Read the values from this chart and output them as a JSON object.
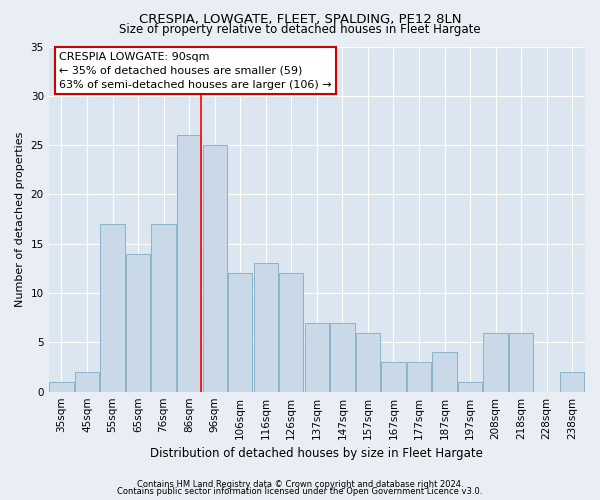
{
  "title": "CRESPIA, LOWGATE, FLEET, SPALDING, PE12 8LN",
  "subtitle": "Size of property relative to detached houses in Fleet Hargate",
  "xlabel": "Distribution of detached houses by size in Fleet Hargate",
  "ylabel": "Number of detached properties",
  "categories": [
    "35sqm",
    "45sqm",
    "55sqm",
    "65sqm",
    "76sqm",
    "86sqm",
    "96sqm",
    "106sqm",
    "116sqm",
    "126sqm",
    "137sqm",
    "147sqm",
    "157sqm",
    "167sqm",
    "177sqm",
    "187sqm",
    "197sqm",
    "208sqm",
    "218sqm",
    "228sqm",
    "238sqm"
  ],
  "values": [
    1,
    2,
    17,
    14,
    17,
    26,
    25,
    12,
    13,
    12,
    7,
    7,
    6,
    3,
    3,
    4,
    1,
    6,
    6,
    0,
    2
  ],
  "bar_color": "#c9d9e8",
  "bar_edge_color": "#8ab4cc",
  "annotation_text": "CRESPIA LOWGATE: 90sqm\n← 35% of detached houses are smaller (59)\n63% of semi-detached houses are larger (106) →",
  "annotation_box_color": "#ffffff",
  "annotation_box_edge_color": "#cc0000",
  "background_color": "#e8eef4",
  "plot_bg_color": "#dce6f0",
  "grid_color": "#ffffff",
  "footer1": "Contains HM Land Registry data © Crown copyright and database right 2024.",
  "footer2": "Contains public sector information licensed under the Open Government Licence v3.0.",
  "ylim": [
    0,
    35
  ],
  "yticks": [
    0,
    5,
    10,
    15,
    20,
    25,
    30,
    35
  ],
  "red_line_x": 5.45,
  "title_fontsize": 9.5,
  "subtitle_fontsize": 8.5,
  "ylabel_fontsize": 8,
  "xlabel_fontsize": 8.5,
  "tick_fontsize": 7.5,
  "annotation_fontsize": 8,
  "footer_fontsize": 6
}
